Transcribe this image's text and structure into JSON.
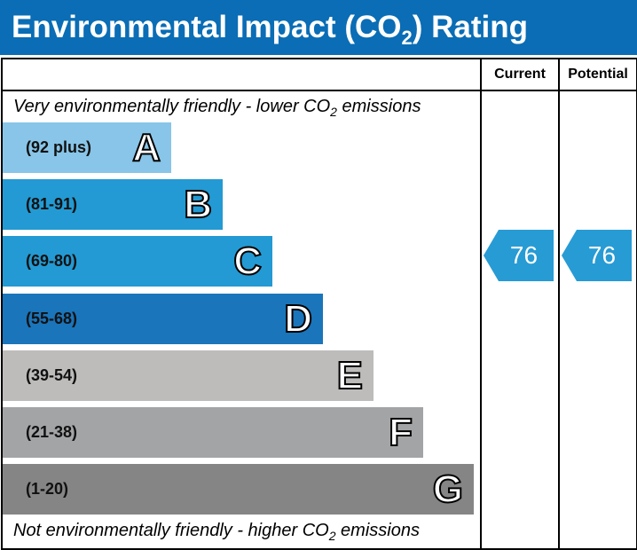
{
  "title": {
    "main": "Environmental Impact (CO",
    "sub": "2",
    "end": ") Rating"
  },
  "headers": {
    "current": "Current",
    "potential": "Potential"
  },
  "top_note": {
    "a": "Very environmentally friendly - lower CO",
    "sub": "2",
    "b": " emissions"
  },
  "bottom_note": {
    "a": "Not environmentally friendly - higher CO",
    "sub": "2",
    "b": " emissions"
  },
  "chart_data": {
    "type": "bar",
    "bands": [
      {
        "letter": "A",
        "range": "(92 plus)",
        "color": "#88c5e8"
      },
      {
        "letter": "B",
        "range": "(81-91)",
        "color": "#239ad3"
      },
      {
        "letter": "C",
        "range": "(69-80)",
        "color": "#239ad3"
      },
      {
        "letter": "D",
        "range": "(55-68)",
        "color": "#1a75bb"
      },
      {
        "letter": "E",
        "range": "(39-54)",
        "color": "#bdbcbb"
      },
      {
        "letter": "F",
        "range": "(21-38)",
        "color": "#a3a4a6"
      },
      {
        "letter": "G",
        "range": "(1-20)",
        "color": "#858585"
      }
    ],
    "current": {
      "value": "76",
      "band": "C",
      "color": "#279bd4"
    },
    "potential": {
      "value": "76",
      "band": "C",
      "color": "#279bd4"
    }
  }
}
